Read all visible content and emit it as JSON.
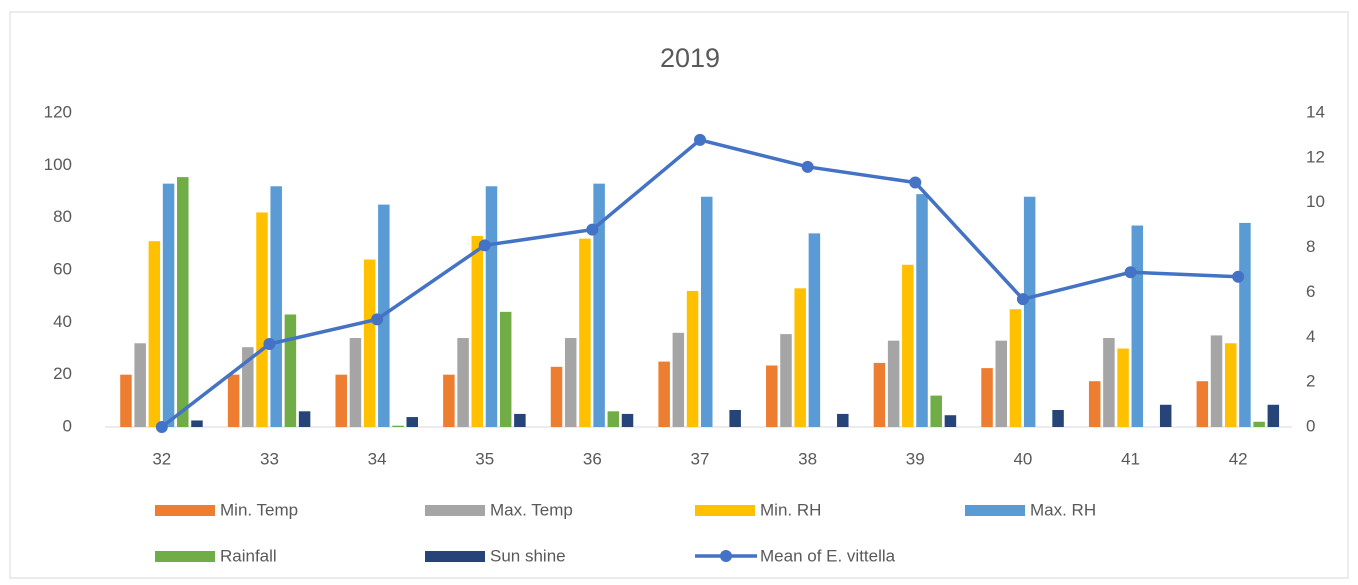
{
  "chart_data": {
    "type": "bar",
    "title": "2019",
    "categories": [
      "32",
      "33",
      "34",
      "35",
      "36",
      "37",
      "38",
      "39",
      "40",
      "41",
      "42"
    ],
    "series": [
      {
        "name": "Min. Temp",
        "color": "#ed7d31",
        "values": [
          20,
          20,
          20,
          20,
          23,
          25,
          23.5,
          24.5,
          22.5,
          17.5,
          17.5
        ]
      },
      {
        "name": "Max. Temp",
        "color": "#a5a5a5",
        "values": [
          32,
          30.5,
          34,
          34,
          34,
          36,
          35.5,
          33,
          33,
          34,
          35
        ]
      },
      {
        "name": "Min. RH",
        "color": "#ffc000",
        "values": [
          71,
          82,
          64,
          73,
          72,
          52,
          53,
          62,
          45,
          30,
          32
        ]
      },
      {
        "name": "Max. RH",
        "color": "#5b9bd5",
        "values": [
          93,
          92,
          85,
          92,
          93,
          88,
          74,
          89,
          88,
          77,
          78
        ]
      },
      {
        "name": "Rainfall",
        "color": "#70ad47",
        "values": [
          95.5,
          43,
          0.5,
          44,
          6,
          0,
          0,
          12,
          0,
          0,
          2
        ]
      },
      {
        "name": "Sun shine",
        "color": "#264478",
        "values": [
          2.5,
          6,
          3.8,
          5,
          5,
          6.5,
          5,
          4.5,
          6.5,
          8.5,
          8.5
        ]
      },
      {
        "name": "Mean of E. vittella",
        "color": "#4472c4",
        "type": "line",
        "axis": "y2",
        "values": [
          0,
          3.7,
          4.8,
          8.1,
          8.8,
          12.8,
          11.6,
          10.9,
          5.7,
          6.9,
          6.7
        ]
      }
    ],
    "ylim": [
      0,
      120
    ],
    "yticks": [
      0,
      20,
      40,
      60,
      80,
      100,
      120
    ],
    "y2lim": [
      0,
      14
    ],
    "y2ticks": [
      0,
      2,
      4,
      6,
      8,
      10,
      12,
      14
    ],
    "legend": "bottom"
  }
}
